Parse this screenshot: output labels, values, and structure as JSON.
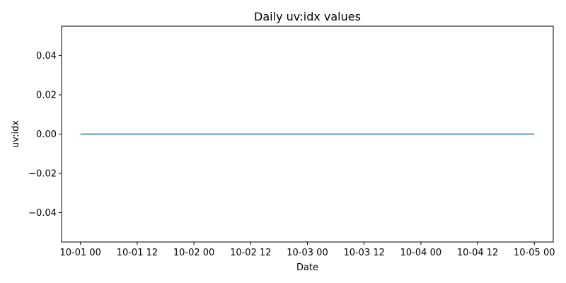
{
  "chart_data": {
    "type": "line",
    "title": "Daily uv:idx values",
    "xlabel": "Date",
    "ylabel": "uv:idx",
    "x": [
      "2024-10-01",
      "2024-10-02",
      "2024-10-03",
      "2024-10-04",
      "2024-10-05"
    ],
    "xlim": [
      "2024-09-30 20:00",
      "2024-10-05 04:00"
    ],
    "x_ticks": [
      "10-01 00",
      "10-01 12",
      "10-02 00",
      "10-02 12",
      "10-03 00",
      "10-03 12",
      "10-04 00",
      "10-04 12",
      "10-05 00"
    ],
    "ylim": [
      -0.055,
      0.055
    ],
    "y_ticks": [
      "0.04",
      "0.02",
      "0.00",
      "−0.02",
      "−0.04"
    ],
    "series": [
      {
        "values": [
          0,
          0,
          0,
          0,
          0
        ],
        "color": "#1f77b4"
      }
    ],
    "grid": false,
    "legend": "none"
  }
}
